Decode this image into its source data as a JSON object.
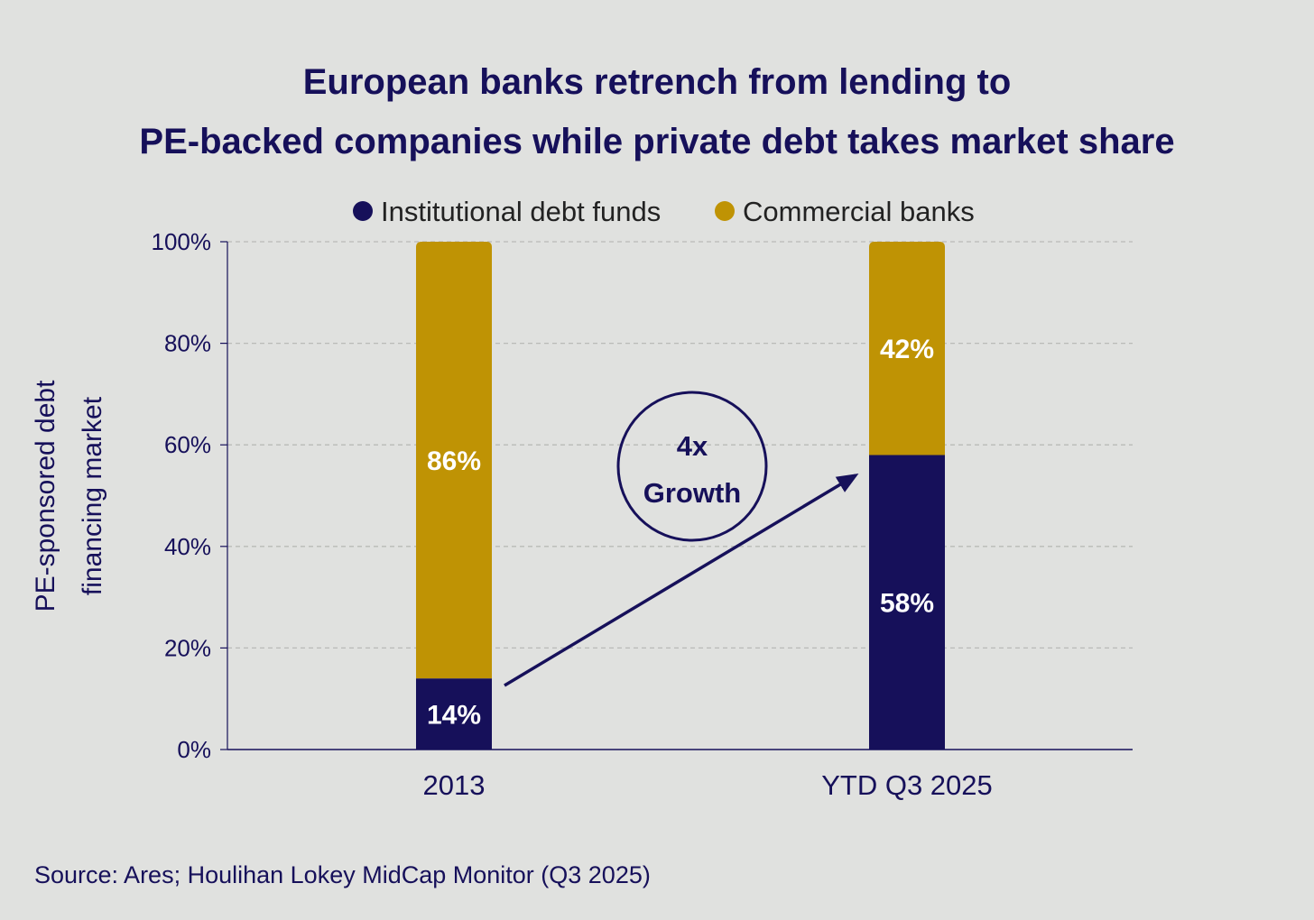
{
  "chart_data": {
    "type": "bar",
    "stacked": true,
    "title_lines": [
      "European banks retrench from lending to",
      "PE-backed companies while private debt takes market share"
    ],
    "ylabel_lines": [
      "PE-sponsored debt",
      "financing market"
    ],
    "xlabel": "",
    "categories": [
      "2013",
      "YTD Q3 2025"
    ],
    "series": [
      {
        "name": "Institutional debt funds",
        "values": [
          14,
          58
        ],
        "labels": [
          "14%",
          "58%"
        ],
        "color": "#16105a"
      },
      {
        "name": "Commercial banks",
        "values": [
          86,
          42
        ],
        "labels": [
          "86%",
          "42%"
        ],
        "color": "#bf9304"
      }
    ],
    "ylim": [
      0,
      100
    ],
    "yticks": [
      0,
      20,
      40,
      60,
      80,
      100
    ],
    "ytick_labels": [
      "0%",
      "20%",
      "40%",
      "60%",
      "80%",
      "100%"
    ],
    "grid": true,
    "legend_position": "top-center",
    "annotation": {
      "lines": [
        "4x",
        "Growth"
      ],
      "shape": "circle",
      "arrow": "from 2013 funds bar to YTD Q3 2025 funds bar"
    }
  },
  "source": "Source: Ares; Houlihan Lokey MidCap Monitor (Q3 2025)",
  "colors": {
    "background": "#e0e1df",
    "navy": "#16105a",
    "gold": "#bf9304",
    "grid": "#b9bab7"
  }
}
